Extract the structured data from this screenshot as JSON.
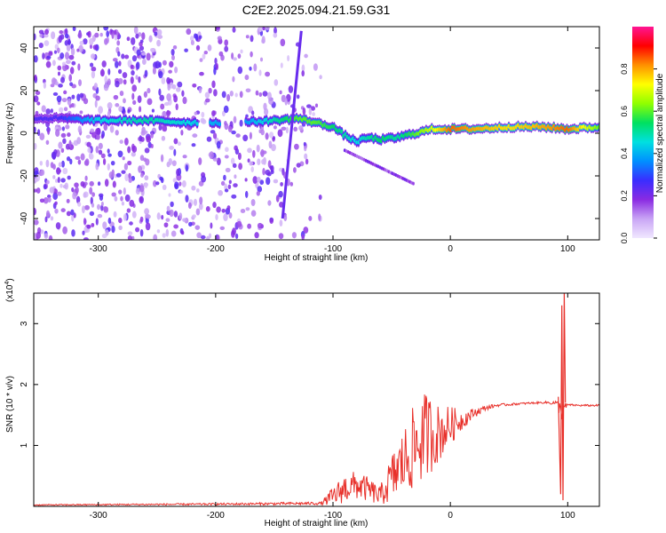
{
  "title": "C2E2.2025.094.21.59.G31",
  "chart_data": [
    {
      "type": "heatmap",
      "xlabel": "Height of straight line (km)",
      "ylabel": "Frequency (Hz)",
      "xlim": [
        -355,
        127
      ],
      "ylim": [
        -50,
        50
      ],
      "x_ticks": [
        -300,
        -200,
        -100,
        0,
        100
      ],
      "y_ticks": [
        -40,
        -20,
        0,
        20,
        40
      ],
      "colorbar": {
        "label": "Normalized spectral amplitude",
        "range": [
          0,
          1
        ],
        "ticks": [
          "0.0",
          "0.2",
          "0.4",
          "0.6",
          "0.8"
        ],
        "tick_values": [
          0,
          0.2,
          0.4,
          0.6,
          0.8
        ],
        "colormap": [
          "#f0e8ff",
          "#c9a5f5",
          "#8a2be2",
          "#3a2dff",
          "#0090ff",
          "#00e0e0",
          "#00e060",
          "#90ff00",
          "#ffff00",
          "#ff9000",
          "#ff0000",
          "#ff1493"
        ]
      },
      "ridge": {
        "x": [
          -335,
          -300,
          -260,
          -220,
          -180,
          -150,
          -130,
          -115,
          -100,
          -90,
          -80,
          -70,
          -60,
          -45,
          -30,
          -15,
          0,
          20,
          50,
          80,
          100,
          127
        ],
        "y": [
          7,
          6,
          6,
          5,
          5,
          6,
          7,
          5,
          3,
          -1,
          -4,
          -2,
          -3,
          -2,
          0,
          2,
          2,
          2,
          3,
          3,
          2,
          3
        ],
        "amplitude": [
          0.25,
          0.45,
          0.5,
          0.45,
          0.35,
          0.5,
          0.6,
          0.6,
          0.55,
          0.5,
          0.45,
          0.5,
          0.55,
          0.5,
          0.6,
          0.7,
          0.85,
          0.8,
          0.75,
          0.8,
          0.85,
          0.6
        ]
      },
      "streak": {
        "x": [
          -143,
          -127
        ],
        "y": [
          -40,
          48
        ]
      }
    },
    {
      "type": "line",
      "xlabel": "Height of straight line (km)",
      "ylabel": "SNR (10 * v/v)",
      "y_multiplier": "(x10",
      "y_multiplier_exp": "4",
      "y_multiplier_close": ")",
      "xlim": [
        -355,
        127
      ],
      "ylim": [
        0,
        3.5
      ],
      "x_ticks": [
        -300,
        -200,
        -100,
        0,
        100
      ],
      "y_ticks": [
        1,
        2,
        3
      ],
      "color": "#e8302a",
      "envelope": {
        "x": [
          -355,
          -200,
          -110,
          -100,
          -90,
          -80,
          -70,
          -60,
          -50,
          -40,
          -30,
          -20,
          -10,
          0,
          10,
          20,
          30,
          40,
          60,
          80,
          90,
          95,
          100,
          110,
          127
        ],
        "base": [
          0.02,
          0.03,
          0.04,
          0.1,
          0.2,
          0.25,
          0.2,
          0.1,
          0.3,
          0.5,
          0.7,
          0.9,
          1.0,
          1.2,
          1.35,
          1.5,
          1.6,
          1.65,
          1.68,
          1.7,
          1.68,
          1.5,
          1.66,
          1.65,
          1.65
        ],
        "noise": [
          0.01,
          0.02,
          0.03,
          0.2,
          0.3,
          0.3,
          0.25,
          0.2,
          0.5,
          0.7,
          0.9,
          0.9,
          0.6,
          0.4,
          0.2,
          0.1,
          0.05,
          0.03,
          0.02,
          0.02,
          0.05,
          0.2,
          0.02,
          0.02,
          0.02
        ]
      },
      "spike": {
        "x": [
          92,
          94,
          95,
          96,
          97,
          98
        ],
        "y": [
          1.8,
          0.2,
          3.3,
          0.1,
          3.5,
          1.7
        ]
      }
    }
  ]
}
